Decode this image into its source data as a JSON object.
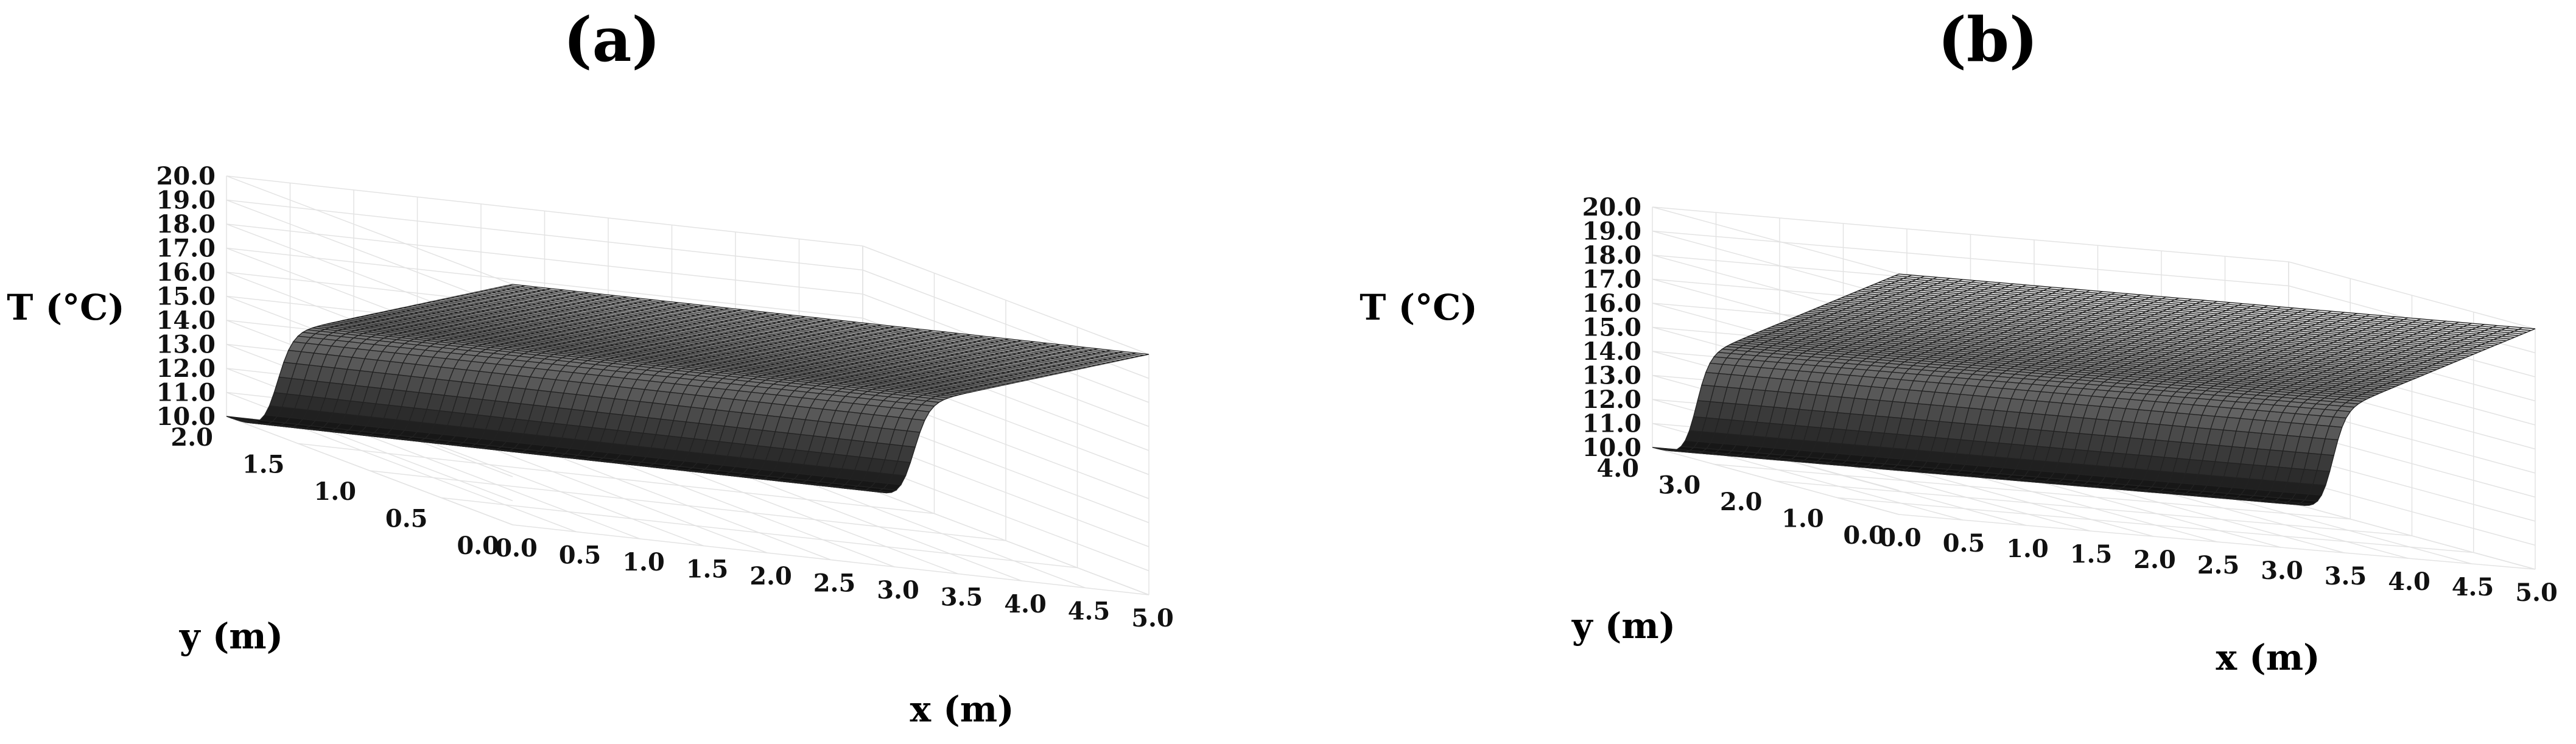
{
  "chart_data": [
    {
      "type": "surface",
      "title": "(a)",
      "xlabel": "x (m)",
      "ylabel": "y (m)",
      "zlabel": "T (°C)",
      "xlim": [
        0,
        5
      ],
      "ylim": [
        0,
        2
      ],
      "zlim": [
        10,
        20
      ],
      "x_ticks": [
        "0.0",
        "0.5",
        "1.0",
        "1.5",
        "2.0",
        "2.5",
        "3.0",
        "3.5",
        "4.0",
        "4.5",
        "5.0"
      ],
      "y_ticks": [
        "0.0",
        "0.5",
        "1.0",
        "1.5",
        "2.0"
      ],
      "z_ticks": [
        "10.0",
        "11.0",
        "12.0",
        "13.0",
        "14.0",
        "15.0",
        "16.0",
        "17.0",
        "18.0",
        "19.0",
        "20.0"
      ],
      "surface": {
        "T_at_y0": 20.0,
        "T_min": 10.0,
        "y_steep_drop": 1.65,
        "colormap": "gray"
      },
      "grid": true
    },
    {
      "type": "surface",
      "title": "(b)",
      "xlabel": "x (m)",
      "ylabel": "y (m)",
      "zlabel": "T (°C)",
      "xlim": [
        0,
        5
      ],
      "ylim": [
        0,
        4
      ],
      "zlim": [
        10,
        20
      ],
      "x_ticks": [
        "0.0",
        "0.5",
        "1.0",
        "1.5",
        "2.0",
        "2.5",
        "3.0",
        "3.5",
        "4.0",
        "4.5",
        "5.0"
      ],
      "y_ticks": [
        "0.0",
        "1.0",
        "2.0",
        "3.0",
        "4.0"
      ],
      "z_ticks": [
        "10.0",
        "11.0",
        "12.0",
        "13.0",
        "14.0",
        "15.0",
        "16.0",
        "17.0",
        "18.0",
        "19.0",
        "20.0"
      ],
      "surface": {
        "T_at_y0": 20.0,
        "T_min": 10.0,
        "y_steep_drop": 3.3,
        "colormap": "gray"
      },
      "grid": true
    }
  ]
}
